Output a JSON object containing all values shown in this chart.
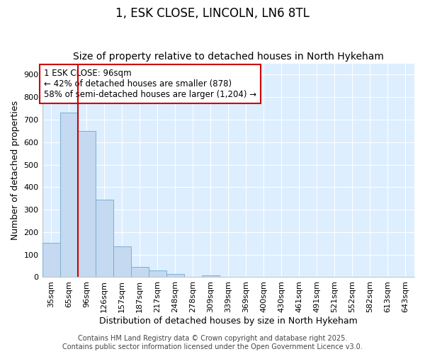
{
  "title": "1, ESK CLOSE, LINCOLN, LN6 8TL",
  "subtitle": "Size of property relative to detached houses in North Hykeham",
  "xlabel": "Distribution of detached houses by size in North Hykeham",
  "ylabel": "Number of detached properties",
  "bar_color": "#c5d9f0",
  "bar_edge_color": "#7bafd4",
  "plot_bg_color": "#ddeeff",
  "fig_bg_color": "#ffffff",
  "grid_color": "#ffffff",
  "bins": [
    "35sqm",
    "65sqm",
    "96sqm",
    "126sqm",
    "157sqm",
    "187sqm",
    "217sqm",
    "248sqm",
    "278sqm",
    "309sqm",
    "339sqm",
    "369sqm",
    "400sqm",
    "430sqm",
    "461sqm",
    "491sqm",
    "521sqm",
    "552sqm",
    "582sqm",
    "613sqm",
    "643sqm"
  ],
  "values": [
    152,
    730,
    651,
    343,
    137,
    44,
    30,
    13,
    0,
    8,
    0,
    0,
    0,
    0,
    0,
    0,
    0,
    0,
    0,
    0,
    0
  ],
  "red_line_x": 1.5,
  "ylim": [
    0,
    950
  ],
  "yticks": [
    0,
    100,
    200,
    300,
    400,
    500,
    600,
    700,
    800,
    900
  ],
  "annotation_text": "1 ESK CLOSE: 96sqm\n← 42% of detached houses are smaller (878)\n58% of semi-detached houses are larger (1,204) →",
  "annotation_box_color": "#ffffff",
  "annotation_border_color": "#cc0000",
  "footer_line1": "Contains HM Land Registry data © Crown copyright and database right 2025.",
  "footer_line2": "Contains public sector information licensed under the Open Government Licence v3.0.",
  "title_fontsize": 12,
  "subtitle_fontsize": 10,
  "axis_label_fontsize": 9,
  "tick_fontsize": 8,
  "annotation_fontsize": 8.5,
  "footer_fontsize": 7
}
